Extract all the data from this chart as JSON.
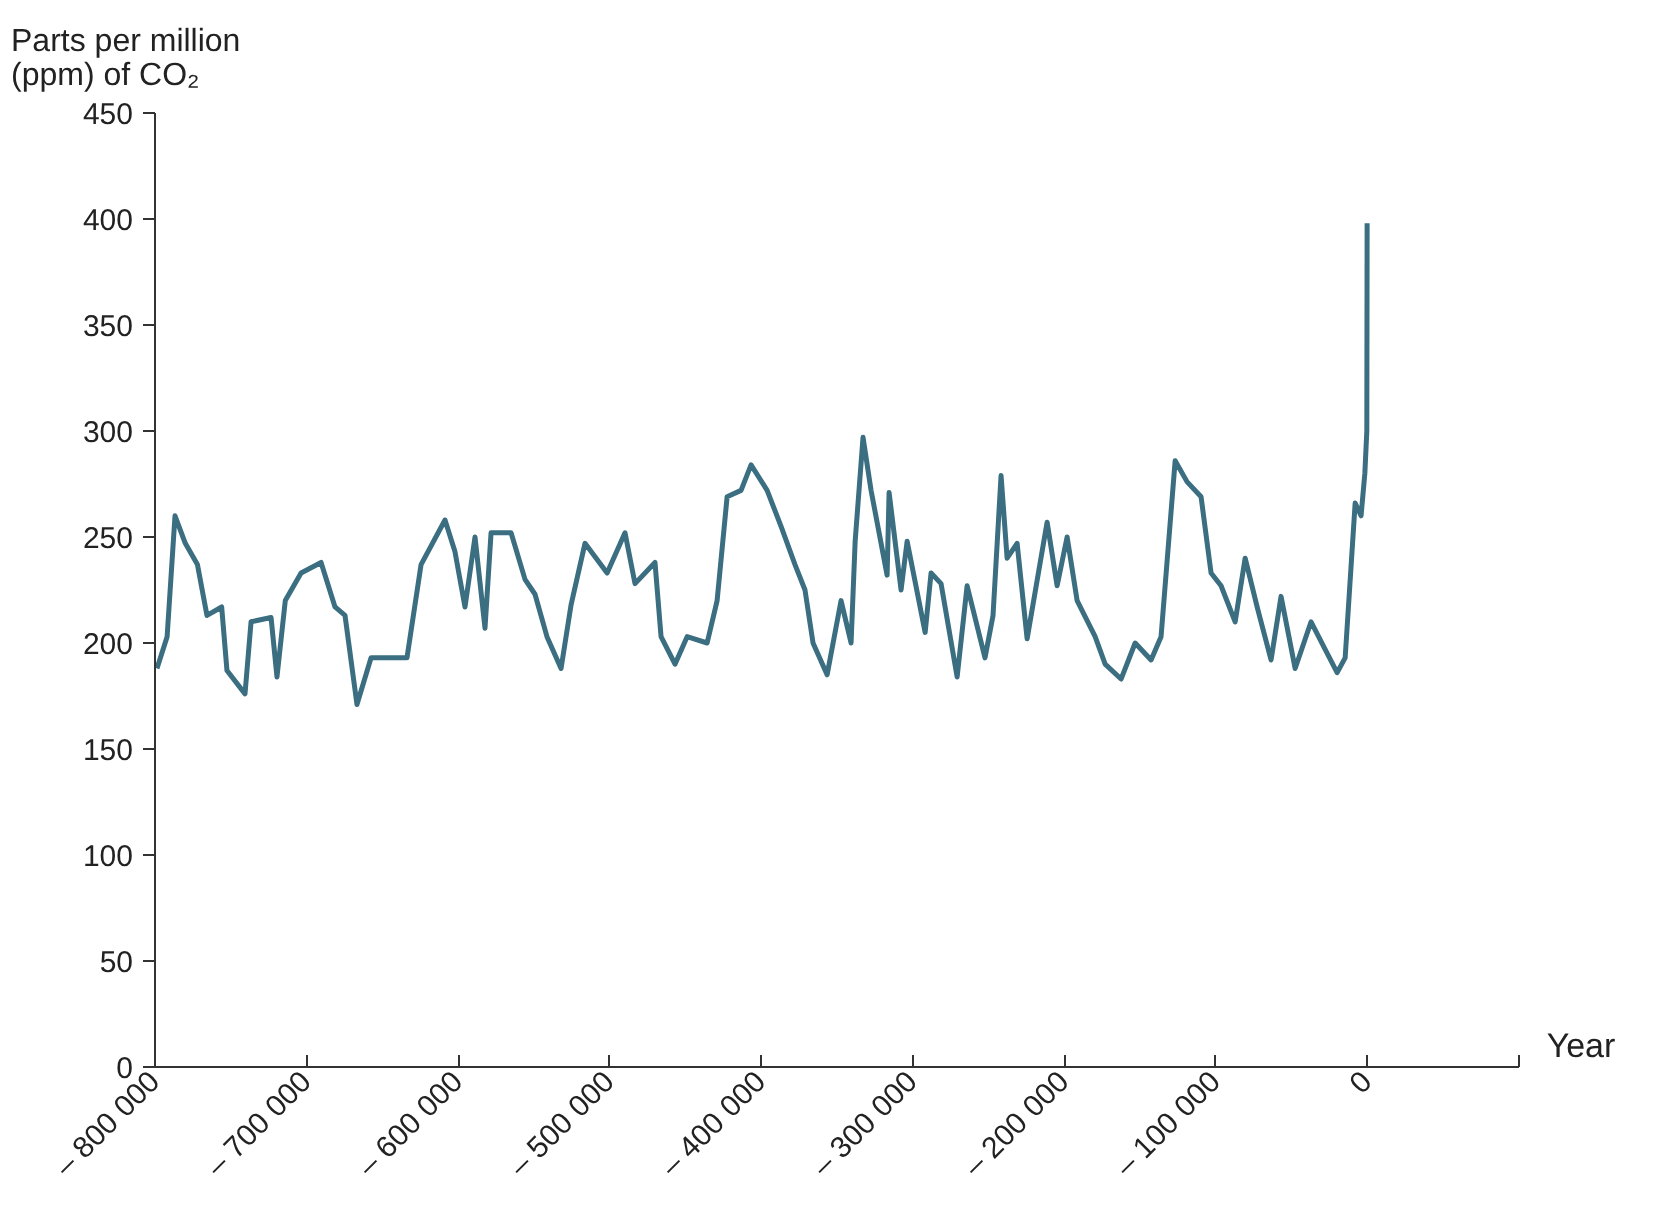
{
  "chart_data": {
    "type": "line",
    "ylabel": "Parts per million (ppm) of CO₂",
    "xlabel": "Year",
    "x": [
      -798700,
      -792000,
      -786800,
      -780000,
      -772000,
      -765700,
      -756000,
      -752500,
      -740600,
      -736600,
      -723400,
      -719500,
      -714000,
      -703600,
      -690400,
      -681200,
      -674600,
      -666700,
      -657400,
      -633700,
      -624400,
      -608600,
      -602000,
      -595400,
      -588800,
      -582200,
      -578200,
      -565000,
      -555800,
      -549200,
      -541300,
      -532000,
      -525400,
      -516200,
      -501600,
      -489800,
      -483200,
      -470000,
      -466000,
      -456800,
      -448800,
      -435600,
      -429000,
      -422400,
      -413200,
      -406600,
      -396000,
      -386800,
      -377600,
      -371000,
      -365700,
      -356400,
      -347200,
      -340600,
      -337900,
      -332700,
      -327400,
      -316800,
      -315500,
      -307600,
      -303600,
      -291700,
      -287800,
      -281200,
      -270600,
      -264000,
      -252200,
      -246900,
      -241600,
      -237600,
      -231000,
      -224400,
      -211200,
      -204600,
      -198000,
      -191400,
      -179500,
      -172900,
      -162400,
      -153100,
      -142600,
      -136000,
      -126700,
      -118800,
      -109600,
      -103000,
      -96400,
      -87100,
      -80500,
      -72600,
      -63400,
      -56800,
      -47500,
      -37000,
      -27700,
      -19800,
      -14500,
      -7900,
      -4000,
      -1500,
      -200,
      0
    ],
    "series": [
      {
        "color": "#3a6e80",
        "values": [
          188,
          203,
          260,
          247,
          237,
          213,
          217,
          187,
          176,
          210,
          212,
          184,
          220,
          233,
          238,
          217,
          213,
          171,
          193,
          193,
          237,
          258,
          243,
          217,
          250,
          207,
          252,
          252,
          230,
          223,
          203,
          188,
          218,
          247,
          233,
          252,
          228,
          238,
          203,
          190,
          203,
          200,
          220,
          269,
          272,
          284,
          272,
          255,
          237,
          225,
          200,
          185,
          220,
          200,
          248,
          297,
          272,
          232,
          271,
          225,
          248,
          205,
          233,
          228,
          184,
          227,
          193,
          213,
          279,
          240,
          247,
          202,
          257,
          227,
          250,
          220,
          203,
          190,
          183,
          200,
          192,
          203,
          286,
          276,
          269,
          233,
          227,
          210,
          240,
          217,
          192,
          222,
          188,
          210,
          197,
          186,
          193,
          266,
          260,
          280,
          300,
          398
        ]
      }
    ],
    "xlim": [
      -800000,
      100000
    ],
    "xticks": [
      {
        "value": -800000,
        "label": "– 800 000"
      },
      {
        "value": -700000,
        "label": "– 700 000"
      },
      {
        "value": -600000,
        "label": "– 600 000"
      },
      {
        "value": -500000,
        "label": "– 500 000"
      },
      {
        "value": -400000,
        "label": "– 400 000"
      },
      {
        "value": -300000,
        "label": "– 300 000"
      },
      {
        "value": -200000,
        "label": "– 200 000"
      },
      {
        "value": -100000,
        "label": "– 100 000"
      },
      0,
      {
        "value": 100000,
        "label": null
      }
    ],
    "ylim": [
      0,
      450
    ],
    "yticks": [
      0,
      50,
      100,
      150,
      200,
      250,
      300,
      350,
      400,
      450
    ],
    "grid": false
  }
}
